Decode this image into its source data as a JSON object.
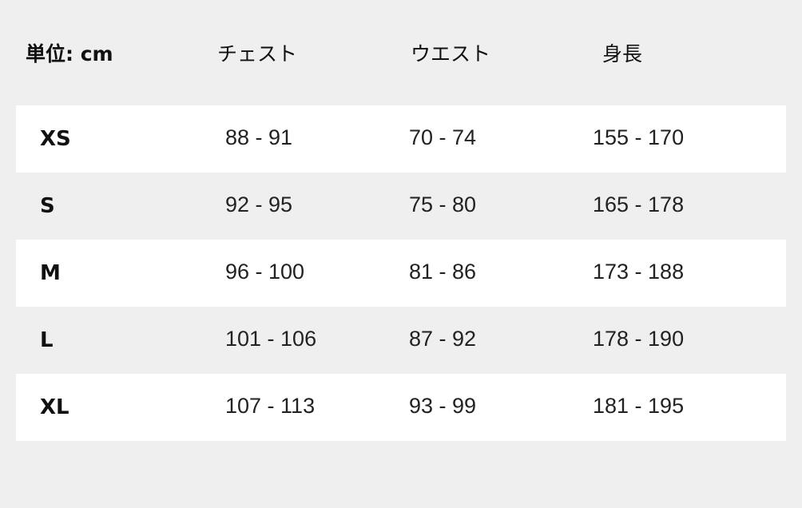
{
  "header": {
    "unit": "単位: cm",
    "chest": "チェスト",
    "waist": "ウエスト",
    "height": "身長"
  },
  "rows": [
    {
      "size": "XS",
      "chest": "88 - 91",
      "waist": "70 - 74",
      "height": "155 - 170"
    },
    {
      "size": "S",
      "chest": "92 - 95",
      "waist": "75 - 80",
      "height": "165 - 178"
    },
    {
      "size": "M",
      "chest": "96 - 100",
      "waist": "81 - 86",
      "height": "173 - 188"
    },
    {
      "size": "L",
      "chest": "101 - 106",
      "waist": "87 - 92",
      "height": "178 - 190"
    },
    {
      "size": "XL",
      "chest": "107 - 113",
      "waist": "93 - 99",
      "height": "181 - 195"
    }
  ]
}
